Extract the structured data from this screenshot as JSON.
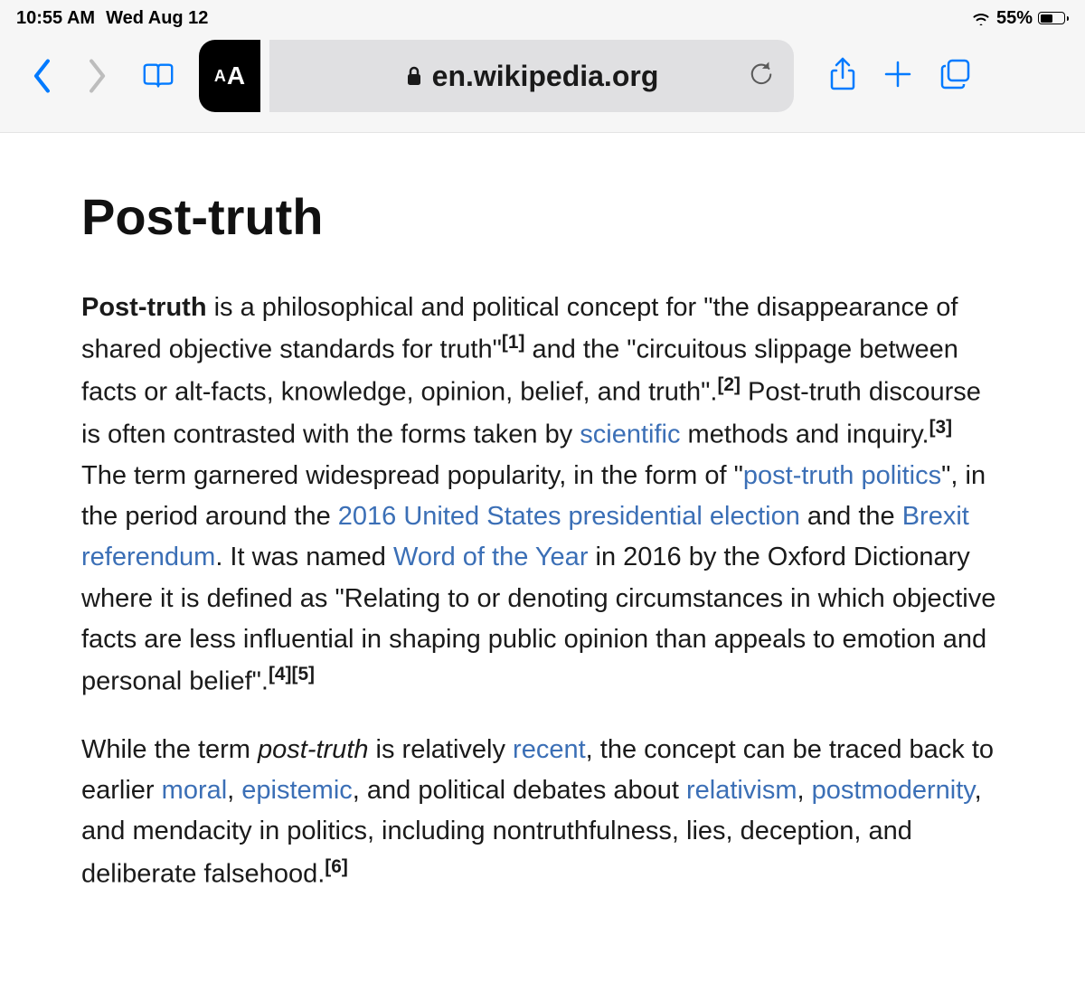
{
  "status_bar": {
    "time": "10:55 AM",
    "date": "Wed Aug 12",
    "battery_percent": "55%",
    "battery_fill_pct": 55
  },
  "toolbar": {
    "aa_small": "A",
    "aa_large": "A",
    "address": "en.wikipedia.org"
  },
  "article": {
    "title": "Post-truth",
    "p1": {
      "lead_bold": "Post-truth",
      "seg1": " is a philosophical and political concept for \"the disappearance of shared objective standards for truth\"",
      "ref1": "[1]",
      "seg2": " and the \"circuitous slippage between facts or alt-facts, knowledge, opinion, belief, and truth\".",
      "ref2": "[2]",
      "seg3": " Post-truth discourse is often contrasted with the forms taken by ",
      "link_scientific": "scientific",
      "seg4": " methods and inquiry.",
      "ref3": "[3]",
      "seg5": " The term garnered widespread popularity, in the form of \"",
      "link_ptp": "post-truth politics",
      "seg6": "\", in the period around the ",
      "link_2016": "2016 United States presidential election",
      "seg7": " and the ",
      "link_brexit": "Brexit referendum",
      "seg8": ". It was named ",
      "link_woty": "Word of the Year",
      "seg9": " in 2016 by the Oxford Dictionary where it is defined as \"Relating to or denoting circumstances in which objective facts are less influential in shaping public opinion than appeals to emotion and personal belief\".",
      "ref4": "[4]",
      "ref5": "[5]"
    },
    "p2": {
      "seg1": "While the term ",
      "italic": "post-truth",
      "seg2": " is relatively ",
      "link_recent": "recent",
      "seg3": ", the concept can be traced back to earlier ",
      "link_moral": "moral",
      "seg4": ", ",
      "link_epistemic": "epistemic",
      "seg5": ", and political debates about ",
      "link_relativism": "relativism",
      "seg6": ", ",
      "link_postmodernity": "postmodernity",
      "seg7": ", and mendacity in politics, including nontruthfulness, lies, deception, and deliberate falsehood.",
      "ref6": "[6]"
    }
  },
  "colors": {
    "ios_blue": "#007aff",
    "link_blue": "#3b6fb6",
    "toolbar_bg": "#f6f6f6",
    "address_bg": "#e0e0e2",
    "text": "#1a1a1a",
    "disabled_gray": "#bdbdbd"
  }
}
